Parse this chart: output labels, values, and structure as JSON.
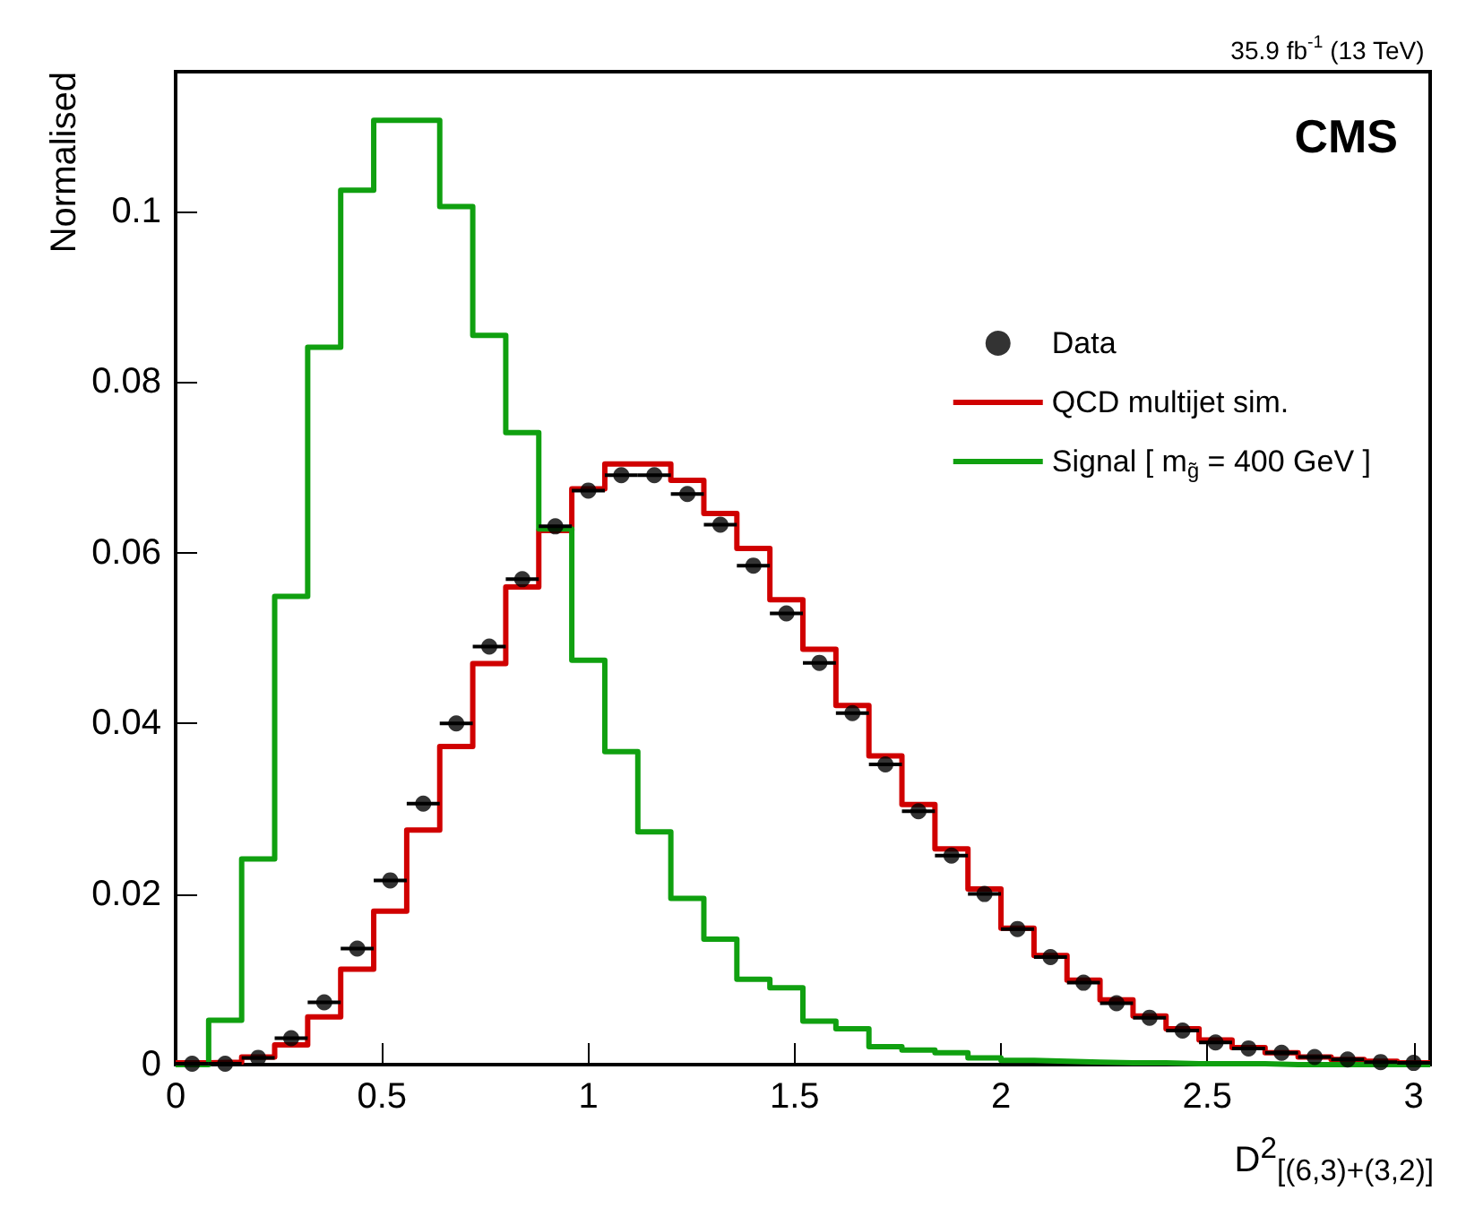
{
  "chart_data": {
    "type": "histogram",
    "title": "35.9 fb$^{-1}$ (13 TeV)",
    "xlabel": "D$^{2}$$_{[(6,3)+(3,2)]}$",
    "ylabel": "Normalised",
    "annotations": [
      "CMS"
    ],
    "bins": [
      0,
      0.08,
      0.16,
      0.24,
      0.32,
      0.4,
      0.48,
      0.56,
      0.64,
      0.72,
      0.8,
      0.88,
      0.96,
      1.04,
      1.12,
      1.2,
      1.28,
      1.36,
      1.44,
      1.52,
      1.6,
      1.68,
      1.76,
      1.84,
      1.92,
      2.0,
      2.08,
      2.16,
      2.24,
      2.32,
      2.4,
      2.48,
      2.56,
      2.64,
      2.72,
      2.8,
      2.88,
      2.96,
      3.04
    ],
    "series": [
      {
        "name": "Data",
        "type": "scatter",
        "marker": "circle",
        "color": "#000000",
        "x": [
          0.04,
          0.12,
          0.2,
          0.28,
          0.36,
          0.44,
          0.52,
          0.6,
          0.68,
          0.76,
          0.84,
          0.92,
          1.0,
          1.08,
          1.16,
          1.24,
          1.32,
          1.4,
          1.48,
          1.56,
          1.64,
          1.72,
          1.8,
          1.88,
          1.96,
          2.04,
          2.12,
          2.2,
          2.28,
          2.36,
          2.44,
          2.52,
          2.6,
          2.68,
          2.76,
          2.84,
          2.92,
          3.0
        ],
        "values": [
          0.0001,
          0.0001,
          0.0008,
          0.0031,
          0.0073,
          0.0136,
          0.0216,
          0.0306,
          0.04,
          0.049,
          0.0569,
          0.0631,
          0.0673,
          0.0691,
          0.0691,
          0.0669,
          0.0633,
          0.0585,
          0.0529,
          0.0471,
          0.0412,
          0.0352,
          0.0297,
          0.0245,
          0.02,
          0.0159,
          0.0126,
          0.0096,
          0.0072,
          0.0055,
          0.004,
          0.0026,
          0.0019,
          0.0014,
          0.0009,
          0.0006,
          0.0003,
          0.0002
        ],
        "xerrors": [
          0.04,
          0.04,
          0.04,
          0.04,
          0.04,
          0.04,
          0.04,
          0.04,
          0.04,
          0.04,
          0.04,
          0.04,
          0.04,
          0.04,
          0.04,
          0.04,
          0.04,
          0.04,
          0.04,
          0.04,
          0.04,
          0.04,
          0.04,
          0.04,
          0.04,
          0.04,
          0.04,
          0.04,
          0.04,
          0.04,
          0.04,
          0.04,
          0.04,
          0.04,
          0.04,
          0.04,
          0.04,
          0.04
        ]
      },
      {
        "name": "QCD multijet sim.",
        "color": "#d00000",
        "values": [
          0.0002,
          0.0003,
          0.0009,
          0.0023,
          0.0056,
          0.0112,
          0.018,
          0.0275,
          0.0373,
          0.047,
          0.056,
          0.0626,
          0.0675,
          0.0704,
          0.0704,
          0.0685,
          0.0646,
          0.0605,
          0.0545,
          0.0487,
          0.0421,
          0.0362,
          0.0305,
          0.0253,
          0.0206,
          0.016,
          0.0128,
          0.0099,
          0.0076,
          0.0057,
          0.0042,
          0.0029,
          0.002,
          0.0014,
          0.0009,
          0.0006,
          0.0004,
          0.0002
        ]
      },
      {
        "name": "Signal [ m$_{g̃}$ = 400 GeV ]",
        "color": "#10a010",
        "values": [
          0,
          0.0052,
          0.0241,
          0.0549,
          0.0841,
          0.1025,
          0.1107,
          0.1107,
          0.1006,
          0.0855,
          0.0741,
          0.0628,
          0.0474,
          0.0367,
          0.0273,
          0.0195,
          0.0147,
          0.01,
          0.009,
          0.0051,
          0.0042,
          0.0021,
          0.0017,
          0.0014,
          0.0008,
          0.0005,
          0.0004,
          0.0003,
          0.0002,
          0.0002,
          0.0001,
          0.0001,
          0.0001,
          0,
          0,
          0,
          0,
          0
        ]
      }
    ],
    "xlim": [
      0,
      3.04
    ],
    "xticks": [
      0,
      0.5,
      1,
      1.5,
      2,
      2.5,
      3
    ],
    "ylim": [
      0,
      0.1164
    ],
    "yticks": [
      0,
      0.02,
      0.04,
      0.06,
      0.08,
      0.1
    ],
    "legend": "right",
    "grid": false
  }
}
